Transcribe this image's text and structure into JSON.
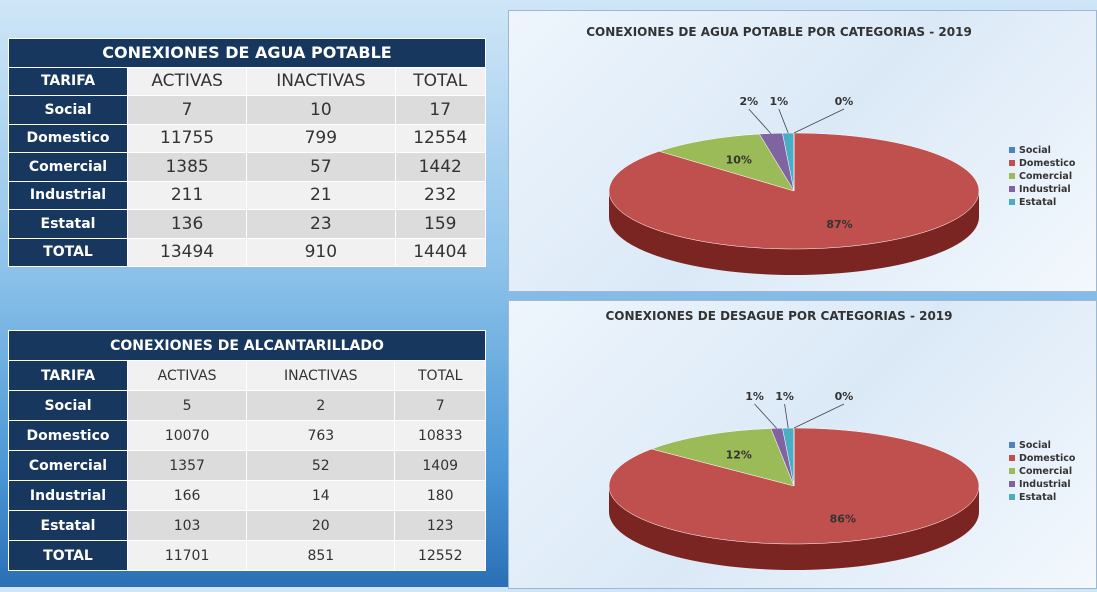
{
  "tables": [
    {
      "title": "CONEXIONES DE AGUA POTABLE",
      "columns": [
        "TARIFA",
        "ACTIVAS",
        "INACTIVAS",
        "TOTAL"
      ],
      "rows": [
        [
          "Social",
          7,
          10,
          17
        ],
        [
          "Domestico",
          11755,
          799,
          12554
        ],
        [
          "Comercial",
          1385,
          57,
          1442
        ],
        [
          "Industrial",
          211,
          21,
          232
        ],
        [
          "Estatal",
          136,
          23,
          159
        ],
        [
          "TOTAL",
          13494,
          910,
          14404
        ]
      ]
    },
    {
      "title": "CONEXIONES DE ALCANTARILLADO",
      "columns": [
        "TARIFA",
        "ACTIVAS",
        "INACTIVAS",
        "TOTAL"
      ],
      "rows": [
        [
          "Social",
          5,
          2,
          7
        ],
        [
          "Domestico",
          10070,
          763,
          10833
        ],
        [
          "Comercial",
          1357,
          52,
          1409
        ],
        [
          "Industrial",
          166,
          14,
          180
        ],
        [
          "Estatal",
          103,
          20,
          123
        ],
        [
          "TOTAL",
          11701,
          851,
          12552
        ]
      ]
    }
  ],
  "chart_data": [
    {
      "type": "pie",
      "title": "CONEXIONES DE AGUA POTABLE POR CATEGORIAS - 2019",
      "categories": [
        "Social",
        "Domestico",
        "Comercial",
        "Industrial",
        "Estatal"
      ],
      "values": [
        0,
        87,
        10,
        2,
        1
      ],
      "value_labels": [
        "0%",
        "87%",
        "10%",
        "2%",
        "1%"
      ],
      "colors": [
        "#4f81bd",
        "#c0504d",
        "#9bbb59",
        "#8064a2",
        "#4bacc6"
      ],
      "legend": "right"
    },
    {
      "type": "pie",
      "title": "CONEXIONES DE DESAGUE POR CATEGORIAS - 2019",
      "categories": [
        "Social",
        "Domestico",
        "Comercial",
        "Industrial",
        "Estatal"
      ],
      "values": [
        0,
        86,
        12,
        1,
        1
      ],
      "value_labels": [
        "0%",
        "86%",
        "12%",
        "1%",
        "1%"
      ],
      "colors": [
        "#4f81bd",
        "#c0504d",
        "#9bbb59",
        "#8064a2",
        "#4bacc6"
      ],
      "legend": "right"
    }
  ]
}
